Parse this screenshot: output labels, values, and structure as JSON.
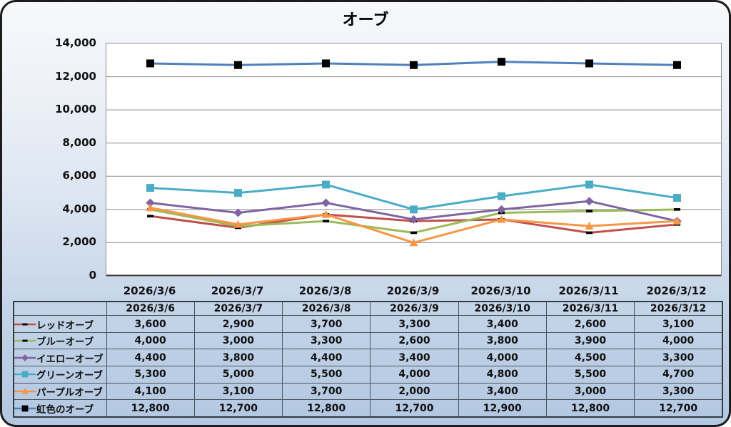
{
  "frame": {
    "background_top": "#f6f8fb",
    "background_bottom": "#b2c7e1",
    "border_color": "#1c1c1c",
    "plot_background": "#ffffff",
    "grid_color": "#8e8e8e",
    "axis_color": "#3f3f3f",
    "table_border_color": "#4b5560"
  },
  "chart_data": {
    "type": "line",
    "title": "オーブ",
    "x": [
      "2026/3/6",
      "2026/3/7",
      "2026/3/8",
      "2026/3/9",
      "2026/3/10",
      "2026/3/11",
      "2026/3/12"
    ],
    "xlabel": "",
    "ylabel": "",
    "ylim": [
      0,
      14000
    ],
    "ytick_step": 2000,
    "grid": true,
    "legend_position": "table-rows-left",
    "series": [
      {
        "name": "レッドオーブ",
        "color": "#C0504D",
        "marker": "dash",
        "marker_color": "#000000",
        "values": [
          3600,
          2900,
          3700,
          3300,
          3400,
          2600,
          3100
        ]
      },
      {
        "name": "ブルーオーブ",
        "color": "#9BBB59",
        "marker": "dash",
        "marker_color": "#000000",
        "values": [
          4000,
          3000,
          3300,
          2600,
          3800,
          3900,
          4000
        ]
      },
      {
        "name": "イエローオーブ",
        "color": "#8064A2",
        "marker": "diamond",
        "marker_color": "#8064A2",
        "values": [
          4400,
          3800,
          4400,
          3400,
          4000,
          4500,
          3300
        ]
      },
      {
        "name": "グリーンオーブ",
        "color": "#4BACC6",
        "marker": "square",
        "marker_color": "#4BACC6",
        "values": [
          5300,
          5000,
          5500,
          4000,
          4800,
          5500,
          4700
        ]
      },
      {
        "name": "パープルオーブ",
        "color": "#F79646",
        "marker": "triangle",
        "marker_color": "#F79646",
        "values": [
          4100,
          3100,
          3700,
          2000,
          3400,
          3000,
          3300
        ]
      },
      {
        "name": "虹色のオーブ",
        "color": "#4F81BD",
        "marker": "square-black",
        "marker_color": "#000000",
        "values": [
          12800,
          12700,
          12800,
          12700,
          12900,
          12800,
          12700
        ]
      }
    ]
  }
}
